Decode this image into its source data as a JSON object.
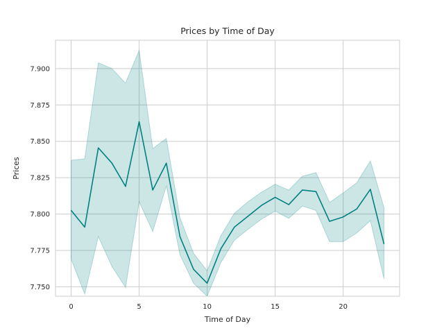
{
  "chart_data": {
    "type": "line",
    "title": "Prices by Time of Day",
    "xlabel": "Time of Day",
    "ylabel": "Prices",
    "xlim": [
      -1.15,
      24.15
    ],
    "ylim": [
      7.7435,
      7.9195
    ],
    "xticks": [
      0,
      5,
      10,
      15,
      20
    ],
    "xtick_labels": [
      "0",
      "5",
      "10",
      "15",
      "20"
    ],
    "yticks": [
      7.75,
      7.775,
      7.8,
      7.825,
      7.85,
      7.875,
      7.9
    ],
    "ytick_labels": [
      "7.750",
      "7.775",
      "7.800",
      "7.825",
      "7.850",
      "7.875",
      "7.900"
    ],
    "grid": true,
    "colors": {
      "line": "#008080",
      "band": "#008080",
      "grid": "#cccccc",
      "spine": "#cccccc"
    },
    "x": [
      0,
      1,
      2,
      3,
      4,
      5,
      6,
      7,
      8,
      9,
      10,
      11,
      12,
      13,
      14,
      15,
      16,
      17,
      18,
      19,
      20,
      21,
      22,
      23
    ],
    "series": [
      {
        "values": [
          7.8025,
          7.791,
          7.8455,
          7.835,
          7.819,
          7.8635,
          7.8165,
          7.835,
          7.7845,
          7.762,
          7.7525,
          7.776,
          7.791,
          7.7985,
          7.806,
          7.8115,
          7.8065,
          7.8165,
          7.8155,
          7.795,
          7.798,
          7.8035,
          7.817,
          7.7795
        ],
        "lower": [
          7.769,
          7.745,
          7.7845,
          7.764,
          7.7495,
          7.8085,
          7.788,
          7.8195,
          7.772,
          7.7525,
          7.7435,
          7.7665,
          7.782,
          7.7895,
          7.7965,
          7.802,
          7.797,
          7.8055,
          7.8025,
          7.781,
          7.781,
          7.787,
          7.7955,
          7.7555
        ],
        "upper": [
          7.837,
          7.838,
          7.904,
          7.9,
          7.89,
          7.9125,
          7.845,
          7.852,
          7.7975,
          7.773,
          7.761,
          7.785,
          7.8005,
          7.8085,
          7.815,
          7.8205,
          7.8165,
          7.826,
          7.8285,
          7.808,
          7.8145,
          7.8215,
          7.8365,
          7.8045
        ]
      }
    ]
  }
}
